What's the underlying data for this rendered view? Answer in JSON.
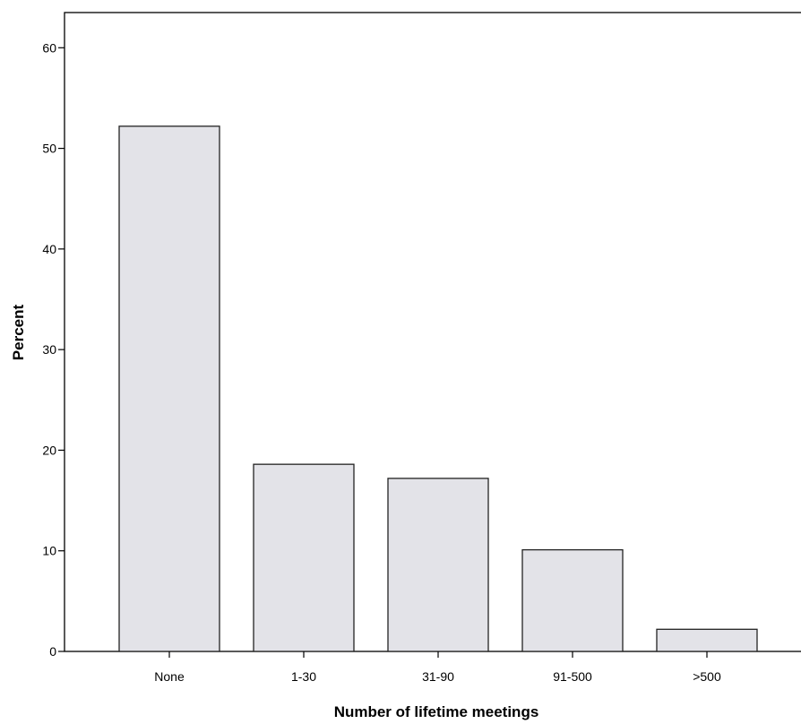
{
  "chart_data": {
    "type": "bar",
    "title": "",
    "xlabel": "Number of lifetime meetings",
    "ylabel": "Percent",
    "categories": [
      "None",
      "1-30",
      "31-90",
      "91-500",
      ">500"
    ],
    "values": [
      52.2,
      18.6,
      17.2,
      10.1,
      2.2
    ],
    "ylim": [
      0,
      63.5
    ],
    "yticks": [
      0,
      10,
      20,
      30,
      40,
      50,
      60
    ],
    "grid": false,
    "legend": "none",
    "colors": {
      "bar_fill": "#e3e3e8",
      "bar_stroke": "#222222",
      "axis": "#000000",
      "background": "#ffffff"
    }
  }
}
